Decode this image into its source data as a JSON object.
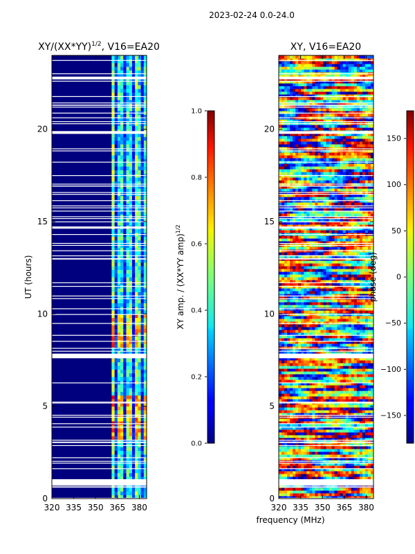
{
  "page_title": "2023-02-24 0.0-24.0",
  "colors": {
    "background": "#ffffff",
    "axis": "#000000",
    "gap": "#ffffff"
  },
  "chart_data": [
    {
      "type": "heatmap",
      "title": "XY/(XX*YY)^1/2, V16=EA20",
      "title_main": "XY/(XX*YY)",
      "title_sup": "1/2",
      "title_rest": ", V16=EA20",
      "xlabel": "",
      "ylabel": "UT (hours)",
      "xlim": [
        320,
        385
      ],
      "ylim": [
        0,
        24
      ],
      "xticks": [
        320,
        335,
        350,
        365,
        380
      ],
      "yticks": [
        0,
        5,
        10,
        15,
        20
      ],
      "colorbar": {
        "label": "XY amp. / (XX*YY amp)^1/2",
        "label_main": "XY amp. / (XX*YY amp)",
        "label_sup": "1/2",
        "range": [
          0.0,
          1.0
        ],
        "ticks": [
          "0.0",
          "0.2",
          "0.4",
          "0.6",
          "0.8",
          "1.0"
        ],
        "colormap": "jet"
      },
      "description_values": {
        "low_band_MHz": [
          320,
          361
        ],
        "low_band_level": 0.02,
        "high_band_MHz": [
          361,
          385
        ],
        "high_band_level_range": [
          0.2,
          0.75
        ]
      },
      "data_gaps_hours": [
        [
          0.7,
          1.05
        ],
        [
          7.6,
          7.85
        ],
        [
          19.75,
          19.9
        ],
        [
          22.7,
          22.85
        ]
      ]
    },
    {
      "type": "heatmap",
      "title": "XY, V16=EA20",
      "xlabel": "frequency (MHz)",
      "ylabel": "",
      "xlim": [
        320,
        385
      ],
      "ylim": [
        0,
        24
      ],
      "xticks": [
        320,
        335,
        350,
        365,
        380
      ],
      "yticks": [
        0,
        5,
        10,
        15,
        20
      ],
      "colorbar": {
        "label": "phase (deg)",
        "range": [
          -180,
          180
        ],
        "ticks": [
          "150",
          "100",
          "50",
          "0",
          "−50",
          "−100",
          "−150"
        ],
        "colormap": "jet"
      },
      "data_gaps_hours": [
        [
          0.7,
          1.05
        ],
        [
          7.6,
          7.85
        ],
        [
          19.75,
          19.9
        ],
        [
          22.7,
          22.85
        ]
      ]
    }
  ]
}
